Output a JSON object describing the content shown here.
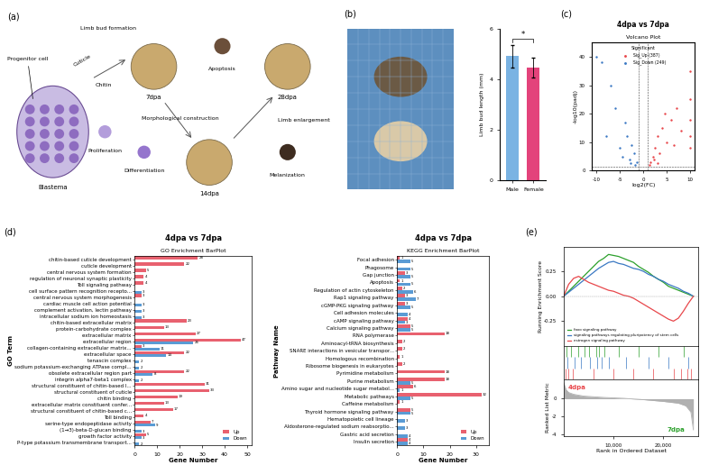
{
  "panel_a": {
    "label": "(a)",
    "blastema": "Blastema",
    "progenitor": "Progenitor cell",
    "chitin": "Chitin",
    "cuticle": "Cuticle",
    "stages": [
      "7dpa",
      "14dpa",
      "28dpa"
    ],
    "steps": [
      "Limb bud formation",
      "Morphological construction",
      "Limb enlargement"
    ],
    "processes": [
      "Apoptosis",
      "Proliferation",
      "Differentiation",
      "Melanization"
    ]
  },
  "chart_data": [
    {
      "panel": "(b)",
      "type": "bar",
      "categories": [
        "Male",
        "Female"
      ],
      "values": [
        4.9,
        4.45
      ],
      "errors": [
        0.45,
        0.4
      ],
      "colors": [
        "#7ab3e3",
        "#e3437b"
      ],
      "ylabel": "Limb bud length (mm)",
      "ylim": [
        0,
        6
      ],
      "yticks": [
        0,
        2,
        4,
        6
      ],
      "annotation": "*"
    },
    {
      "panel": "(c)",
      "type": "scatter",
      "title": "4dpa vs 7dpa",
      "subtitle": "Volcano Plot",
      "xlabel": "log2(FC)",
      "ylabel": "-log10(padj)",
      "legend_title": "Significant",
      "legend": "upper center",
      "series": [
        {
          "name": "Sig_Up (387)",
          "color": "#e8474b",
          "x": [
            1.5,
            2,
            2.5,
            3,
            3.5,
            4,
            5,
            6,
            7,
            8,
            10,
            10,
            10,
            10,
            10,
            1.2,
            2.2,
            4.5,
            6.5,
            3
          ],
          "values": [
            3,
            5,
            8,
            12,
            6,
            15,
            10,
            18,
            22,
            14,
            35,
            25,
            18,
            12,
            8,
            2,
            4,
            20,
            9,
            2.5
          ]
        },
        {
          "name": "Sig_Down (249)",
          "color": "#3a78c3",
          "x": [
            -1.5,
            -2,
            -2.5,
            -3,
            -3.5,
            -4,
            -5,
            -6,
            -7,
            -9,
            -10,
            -1.8,
            -2.8,
            -4.5,
            -8
          ],
          "values": [
            3,
            6,
            9,
            4,
            12,
            17,
            8,
            22,
            30,
            38,
            40,
            2,
            2.5,
            5,
            12
          ]
        }
      ],
      "thresholds": {
        "x": [
          -1,
          1
        ],
        "y": [
          1.3
        ]
      },
      "xlim": [
        -11,
        11
      ],
      "xticks": [
        -10,
        -5,
        0,
        5,
        10
      ],
      "ylim": [
        0,
        45
      ],
      "yticks": [
        0,
        10,
        20,
        30,
        40
      ]
    },
    {
      "panel": "(d)",
      "type": "bar",
      "orientation": "horizontal",
      "title": "4dpa vs 7dpa",
      "subtitle": "GO Enrichment BarPlot",
      "xlabel": "Gene Number",
      "ylabel": "GO Term",
      "data_labels": true,
      "legend": "lower right",
      "categories": [
        "chitin-based cuticle development",
        "cuticle development",
        "central nervous system formation",
        "regulation of neuronal synaptic plasticity",
        "Toll signaling pathway",
        "cell surface pattern recognition recepto...",
        "central nervous system morphogenesis",
        "cardiac muscle cell action potential",
        "complement activation, lectin pathway",
        "intracellular sodium ion homeostasis",
        "chitin-based extracellular matrix",
        "protein-carbohydrate complex",
        "extracellular matrix",
        "extracellular region",
        "collagen-containing extracellular matrix...",
        "extracellular space",
        "tenascin complex",
        "sodium potassium-exchanging ATPase compl...",
        "obsolete extracellular region part",
        "integrin alpha7-beta1 complex",
        "structural constituent of chitin-based l...",
        "structural constituent of cuticle",
        "chitin binding",
        "extracellular matrix constituent confer...",
        "structural constituent of chitin-based c...",
        "Toll binding",
        "serine-type endopeptidase activity",
        "(1→3)-beta-D-glucan binding",
        "growth factor activity",
        "P-type potassium transmembrane transport..."
      ],
      "series": [
        {
          "name": "Up",
          "color": "#e8616f",
          "values": [
            28,
            22,
            5,
            4,
            4,
            null,
            3,
            null,
            null,
            null,
            23,
            13,
            27,
            47,
            3,
            22,
            null,
            null,
            22,
            null,
            31,
            33,
            19,
            13,
            17,
            4,
            7,
            null,
            5,
            null
          ]
        },
        {
          "name": "Down",
          "color": "#5a9bd4",
          "values": [
            null,
            null,
            null,
            null,
            null,
            3,
            null,
            3,
            3,
            3,
            null,
            null,
            null,
            26,
            11,
            14,
            2,
            2,
            8,
            2,
            null,
            null,
            null,
            null,
            null,
            null,
            9,
            3,
            3,
            2
          ]
        }
      ],
      "xlim": [
        0,
        52
      ],
      "xticks": [
        0,
        10,
        20,
        30,
        40,
        50
      ]
    },
    {
      "type": "bar",
      "orientation": "horizontal",
      "title": "4dpa vs 7dpa",
      "subtitle": "KEGG Enrichment BarPlot",
      "xlabel": "Gene Number",
      "ylabel": "Pathway Name",
      "data_labels": true,
      "legend": "lower right",
      "categories": [
        "Focal adhesion",
        "Phagosome",
        "Gap junction",
        "Apoptosis",
        "Regulation of actin cytoskeleton",
        "Rap1 signaling pathway",
        "cGMP-PKG signaling pathway",
        "Cell adhesion molecules",
        "cAMP signaling pathway",
        "Calcium signaling pathway",
        "RNA polymerase",
        "Aminoacyl-tRNA biosynthesis",
        "SNARE interactions in vesicular transpor...",
        "Homologous recombination",
        "Ribosome biogenesis in eukaryotes",
        "Pyrimidine metabolism",
        "Purine metabolism",
        "Amino sugar and nucleotide sugar metabol...",
        "Metabolic pathways",
        "Caffeine metabolism",
        "Thyroid hormone signaling pathway",
        "Hematopoietic cell lineage",
        "Aldosterone-regulated sodium reabsorptio...",
        "Gastric acid secretion",
        "Insulin secretion"
      ],
      "series": [
        {
          "name": "Up",
          "color": "#e8616f",
          "values": [
            1,
            null,
            3,
            1,
            2,
            3,
            3,
            null,
            4,
            5,
            18,
            2,
            2,
            1,
            2,
            18,
            18,
            6,
            32,
            1,
            5,
            null,
            null,
            null,
            4
          ]
        },
        {
          "name": "Down",
          "color": "#5a9bd4",
          "values": [
            5,
            5,
            5,
            5,
            6,
            7,
            5,
            4,
            3,
            5,
            null,
            null,
            null,
            null,
            null,
            null,
            5,
            1,
            5,
            null,
            5,
            3,
            3,
            4,
            4
          ]
        }
      ],
      "xlim": [
        0,
        35
      ],
      "xticks": [
        0,
        10,
        20,
        30
      ]
    },
    {
      "panel": "(e)",
      "type": "line",
      "ylabel": "Running Enrichment Score",
      "legend": "lower left",
      "tick_labels": "y",
      "x": [
        0,
        1000,
        2000,
        3000,
        4000,
        5000,
        6000,
        7000,
        8000,
        9000,
        10000,
        11000,
        12000,
        13000,
        14000,
        15000,
        16000,
        17000,
        18000,
        19000,
        20000,
        21000,
        22000,
        23000,
        24000,
        25000,
        26000
      ],
      "series": [
        {
          "name": "foxo signaling pathway",
          "color": "#2ca02c",
          "values": [
            0,
            0.05,
            0.1,
            0.15,
            0.2,
            0.25,
            0.3,
            0.35,
            0.38,
            0.42,
            0.41,
            0.4,
            0.38,
            0.36,
            0.34,
            0.3,
            0.27,
            0.24,
            0.2,
            0.17,
            0.14,
            0.1,
            0.08,
            0.06,
            0.04,
            0.02,
            0
          ],
          "hits": [
            500,
            1500,
            3000,
            4200,
            5000,
            6500,
            7000,
            8200,
            11000,
            15000,
            19000,
            24000
          ]
        },
        {
          "name": "signaling pathways regulating pluripotency of stem cells",
          "color": "#3a78c3",
          "values": [
            0,
            0.04,
            0.08,
            0.12,
            0.16,
            0.2,
            0.24,
            0.28,
            0.31,
            0.34,
            0.35,
            0.33,
            0.32,
            0.3,
            0.28,
            0.27,
            0.25,
            0.22,
            0.2,
            0.17,
            0.15,
            0.12,
            0.1,
            0.08,
            0.05,
            0.03,
            0
          ],
          "hits": [
            800,
            2200,
            3500,
            5200,
            6800,
            7700,
            9000,
            12500,
            17000,
            21000,
            25000
          ]
        },
        {
          "name": "estrogen signaling pathway",
          "color": "#e8474b",
          "values": [
            0,
            0.12,
            0.18,
            0.2,
            0.17,
            0.14,
            0.12,
            0.1,
            0.08,
            0.06,
            0.05,
            0.03,
            0.01,
            0,
            -0.02,
            -0.05,
            -0.08,
            -0.11,
            -0.14,
            -0.17,
            -0.2,
            -0.23,
            -0.25,
            -0.22,
            -0.15,
            -0.07,
            0
          ],
          "hits": [
            300,
            900,
            1800,
            6000,
            10000,
            14000,
            18000,
            22000,
            23500,
            24800,
            25600
          ]
        }
      ],
      "xlim": [
        0,
        27000
      ],
      "ylim": [
        -0.5,
        0.5
      ],
      "yticks": [
        {
          "value": -0.25,
          "label": "-0.25"
        },
        {
          "value": 0,
          "label": "0.00"
        },
        {
          "value": 0.25,
          "label": "0.25"
        }
      ]
    },
    {
      "type": "area",
      "ylabel": "Ranked List Metric",
      "xlabel": "Rank in Ordered Dataset",
      "color": "#b0b0b0",
      "x": [
        0,
        500,
        1000,
        2000,
        4000,
        8000,
        12000,
        16000,
        20000,
        23000,
        24500,
        25500,
        26000
      ],
      "values": [
        1.8,
        1.0,
        0.7,
        0.5,
        0.3,
        0.15,
        0.05,
        -0.1,
        -0.3,
        -0.5,
        -0.8,
        -1.5,
        -3.5
      ],
      "annotations": [
        {
          "text": "4dpa",
          "color": "#e8474b"
        },
        {
          "text": "7dpa",
          "color": "#2ca02c"
        }
      ],
      "xlim": [
        0,
        27000
      ],
      "xticks": [
        {
          "value": 10000,
          "label": "10,000"
        },
        {
          "value": 20000,
          "label": "20,000"
        }
      ],
      "ylim": [
        -4.2,
        2.2
      ],
      "yticks": [
        -4,
        -2,
        0
      ]
    }
  ]
}
